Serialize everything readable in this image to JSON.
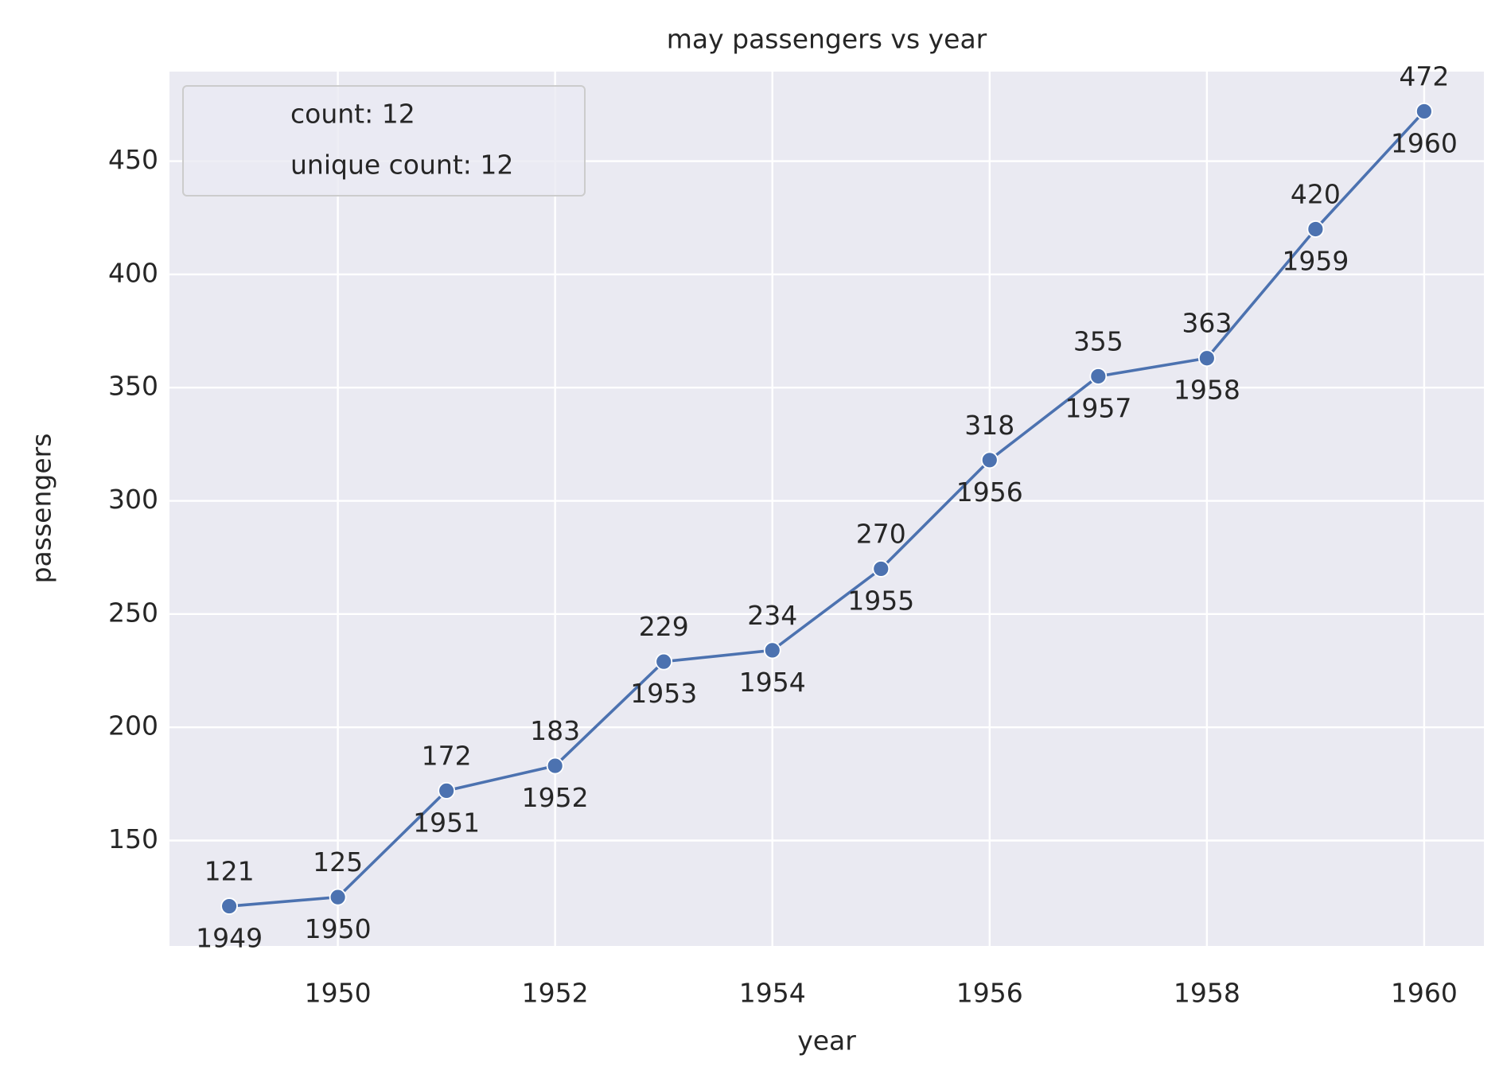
{
  "chart_data": {
    "type": "line",
    "title": "may passengers vs year",
    "x_label": "year",
    "y_label": "passengers",
    "x": [
      1949,
      1950,
      1951,
      1952,
      1953,
      1954,
      1955,
      1956,
      1957,
      1958,
      1959,
      1960
    ],
    "series": [
      {
        "color": "#4c72b0",
        "values": [
          121,
          125,
          172,
          183,
          229,
          234,
          270,
          318,
          355,
          363,
          420,
          472
        ]
      }
    ],
    "xlim": [
      1948.45,
      1960.55
    ],
    "xticks": [
      1950,
      1952,
      1954,
      1956,
      1958,
      1960
    ],
    "ylim": [
      103.45,
      489.55
    ],
    "yticks": [
      150,
      200,
      250,
      300,
      350,
      400,
      450
    ],
    "grid": true,
    "legend": {
      "position": "upper left",
      "entries": [
        "count: 12",
        "unique count: 12"
      ]
    }
  }
}
